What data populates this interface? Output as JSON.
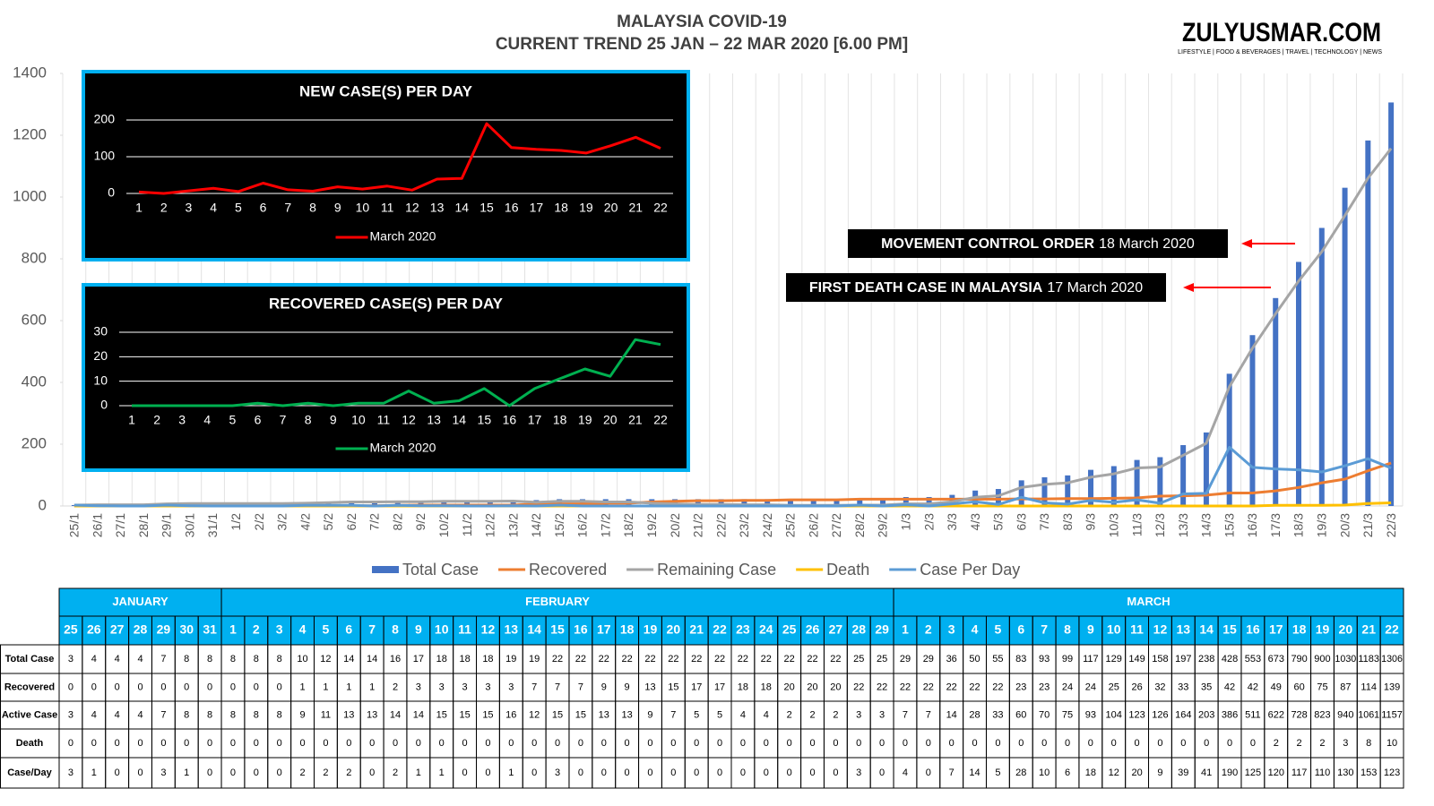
{
  "logo": {
    "name": "ZULYUSMAR.COM",
    "tagline": "LIFESTYLE | FOOD & BEVERAGES | TRAVEL | TECHNOLOGY | NEWS"
  },
  "chart_data": [
    {
      "type": "bar-line",
      "title": "MALAYSIA COVID-19",
      "subtitle": "CURRENT TREND 25 JAN – 22 MAR 2020 [6.00 PM]",
      "categories": [
        "25/1",
        "26/1",
        "27/1",
        "28/1",
        "29/1",
        "30/1",
        "31/1",
        "1/2",
        "2/2",
        "3/2",
        "4/2",
        "5/2",
        "6/2",
        "7/2",
        "8/2",
        "9/2",
        "10/2",
        "11/2",
        "12/2",
        "13/2",
        "14/2",
        "15/2",
        "16/2",
        "17/2",
        "18/2",
        "19/2",
        "20/2",
        "21/2",
        "22/2",
        "23/2",
        "24/2",
        "25/2",
        "26/2",
        "27/2",
        "28/2",
        "29/2",
        "1/3",
        "2/3",
        "3/3",
        "4/3",
        "5/3",
        "6/3",
        "7/3",
        "8/3",
        "9/3",
        "10/3",
        "11/3",
        "12/3",
        "13/3",
        "14/3",
        "15/3",
        "16/3",
        "17/3",
        "18/3",
        "19/3",
        "20/3",
        "21/3",
        "22/3"
      ],
      "series": [
        {
          "name": "Total Case",
          "kind": "bar",
          "color": "#4472c4",
          "values": [
            3,
            4,
            4,
            4,
            7,
            8,
            8,
            8,
            8,
            8,
            10,
            12,
            14,
            14,
            16,
            17,
            18,
            18,
            18,
            19,
            19,
            22,
            22,
            22,
            22,
            22,
            22,
            22,
            22,
            22,
            22,
            22,
            22,
            22,
            25,
            25,
            29,
            29,
            36,
            50,
            55,
            83,
            93,
            99,
            117,
            129,
            149,
            158,
            197,
            238,
            428,
            553,
            673,
            790,
            900,
            1030,
            1183,
            1306
          ]
        },
        {
          "name": "Recovered",
          "kind": "line",
          "color": "#ed7d31",
          "values": [
            0,
            0,
            0,
            0,
            0,
            0,
            0,
            0,
            0,
            0,
            1,
            1,
            1,
            1,
            2,
            3,
            3,
            3,
            3,
            3,
            7,
            7,
            7,
            9,
            9,
            13,
            15,
            17,
            17,
            18,
            18,
            20,
            20,
            20,
            22,
            22,
            22,
            22,
            22,
            22,
            22,
            23,
            23,
            24,
            24,
            25,
            26,
            32,
            33,
            35,
            42,
            42,
            49,
            60,
            75,
            87,
            114,
            139
          ]
        },
        {
          "name": "Remaining Case",
          "kind": "line",
          "color": "#a5a5a5",
          "values": [
            3,
            4,
            4,
            4,
            7,
            8,
            8,
            8,
            8,
            8,
            9,
            11,
            13,
            13,
            14,
            14,
            15,
            15,
            15,
            16,
            12,
            15,
            15,
            13,
            13,
            9,
            7,
            5,
            5,
            4,
            4,
            2,
            2,
            2,
            3,
            3,
            7,
            7,
            14,
            28,
            33,
            60,
            70,
            75,
            93,
            104,
            123,
            126,
            164,
            203,
            386,
            511,
            622,
            728,
            823,
            940,
            1061,
            1157
          ]
        },
        {
          "name": "Death",
          "kind": "line",
          "color": "#ffc000",
          "values": [
            0,
            0,
            0,
            0,
            0,
            0,
            0,
            0,
            0,
            0,
            0,
            0,
            0,
            0,
            0,
            0,
            0,
            0,
            0,
            0,
            0,
            0,
            0,
            0,
            0,
            0,
            0,
            0,
            0,
            0,
            0,
            0,
            0,
            0,
            0,
            0,
            0,
            0,
            0,
            0,
            0,
            0,
            0,
            0,
            0,
            0,
            0,
            0,
            0,
            0,
            0,
            0,
            2,
            2,
            2,
            3,
            8,
            10
          ]
        },
        {
          "name": "Case Per Day",
          "kind": "line",
          "color": "#5b9bd5",
          "values": [
            3,
            1,
            0,
            0,
            3,
            1,
            0,
            0,
            0,
            0,
            2,
            2,
            2,
            0,
            2,
            1,
            1,
            0,
            0,
            1,
            0,
            3,
            0,
            0,
            0,
            0,
            0,
            0,
            0,
            0,
            0,
            0,
            0,
            0,
            3,
            0,
            4,
            0,
            7,
            14,
            5,
            28,
            10,
            6,
            18,
            12,
            20,
            9,
            39,
            41,
            190,
            125,
            120,
            117,
            110,
            130,
            153,
            123
          ]
        }
      ],
      "ylim": [
        0,
        1400
      ],
      "yticks": [
        0,
        200,
        400,
        600,
        800,
        1000,
        1200,
        1400
      ],
      "grid": true,
      "annotations": [
        {
          "bold": "MOVEMENT CONTROL ORDER",
          "text": "18 March 2020"
        },
        {
          "bold": "FIRST DEATH CASE IN MALAYSIA",
          "text": "17 March 2020"
        }
      ]
    },
    {
      "type": "line",
      "title": "NEW CASE(S) PER DAY",
      "x": [
        1,
        2,
        3,
        4,
        5,
        6,
        7,
        8,
        9,
        10,
        11,
        12,
        13,
        14,
        15,
        16,
        17,
        18,
        19,
        20,
        21,
        22
      ],
      "series": [
        {
          "name": "March 2020",
          "color": "#ff0000",
          "values": [
            4,
            0,
            7,
            14,
            5,
            28,
            10,
            6,
            18,
            12,
            20,
            9,
            39,
            41,
            190,
            125,
            120,
            117,
            110,
            130,
            153,
            123
          ]
        }
      ],
      "ylim": [
        0,
        200
      ],
      "yticks": [
        0,
        100,
        200
      ]
    },
    {
      "type": "line",
      "title": "RECOVERED CASE(S) PER DAY",
      "x": [
        1,
        2,
        3,
        4,
        5,
        6,
        7,
        8,
        9,
        10,
        11,
        12,
        13,
        14,
        15,
        16,
        17,
        18,
        19,
        20,
        21,
        22
      ],
      "series": [
        {
          "name": "March 2020",
          "color": "#00b050",
          "values": [
            0,
            0,
            0,
            0,
            0,
            1,
            0,
            1,
            0,
            1,
            1,
            6,
            1,
            2,
            7,
            0,
            7,
            11,
            15,
            12,
            27,
            25
          ]
        }
      ],
      "ylim": [
        0,
        30
      ],
      "yticks": [
        0,
        10,
        20,
        30
      ]
    }
  ],
  "table": {
    "months": [
      "JANUARY",
      "FEBRUARY",
      "MARCH"
    ],
    "days": [
      [
        25,
        26,
        27,
        28,
        29,
        30,
        31
      ],
      [
        1,
        2,
        3,
        4,
        5,
        6,
        7,
        8,
        9,
        10,
        11,
        12,
        13,
        14,
        15,
        16,
        17,
        18,
        19,
        20,
        21,
        22,
        23,
        24,
        25,
        26,
        27,
        28,
        29
      ],
      [
        1,
        2,
        3,
        4,
        5,
        6,
        7,
        8,
        9,
        10,
        11,
        12,
        13,
        14,
        15,
        16,
        17,
        18,
        19,
        20,
        21,
        22
      ]
    ],
    "row_labels": [
      "Total Case",
      "Recovered",
      "Active Case",
      "Death",
      "Case/Day"
    ]
  }
}
